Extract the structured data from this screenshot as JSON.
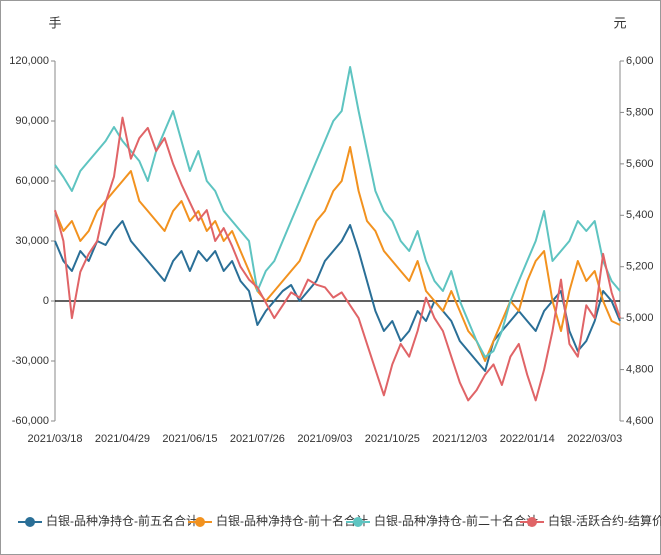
{
  "chart_data": {
    "type": "line",
    "y_unit": "手",
    "y2_unit": "元",
    "categories": [
      "2021/03/18",
      null,
      null,
      null,
      null,
      null,
      null,
      null,
      "2021/04/29",
      null,
      null,
      null,
      null,
      null,
      null,
      null,
      "2021/06/15",
      null,
      null,
      null,
      null,
      null,
      null,
      null,
      "2021/07/26",
      null,
      null,
      null,
      null,
      null,
      null,
      null,
      "2021/09/03",
      null,
      null,
      null,
      null,
      null,
      null,
      null,
      "2021/10/25",
      null,
      null,
      null,
      null,
      null,
      null,
      null,
      "2021/12/03",
      null,
      null,
      null,
      null,
      null,
      null,
      null,
      "2022/01/14",
      null,
      null,
      null,
      null,
      null,
      null,
      null,
      "2022/03/03",
      null,
      null,
      null
    ],
    "ylim": [
      -60000,
      120000
    ],
    "yticks": [
      {
        "value": -60000,
        "label": "-60,000"
      },
      {
        "value": -30000,
        "label": "-30,000"
      },
      0,
      {
        "value": 30000,
        "label": "30,000"
      },
      {
        "value": 60000,
        "label": "60,000"
      },
      {
        "value": 90000,
        "label": "90,000"
      },
      {
        "value": 120000,
        "label": "120,000"
      }
    ],
    "y2lim": [
      4600,
      6000
    ],
    "y2ticks": [
      {
        "value": 4600,
        "label": "4,600"
      },
      {
        "value": 4800,
        "label": "4,800"
      },
      {
        "value": 5000,
        "label": "5,000"
      },
      {
        "value": 5200,
        "label": "5,200"
      },
      {
        "value": 5400,
        "label": "5,400"
      },
      {
        "value": 5600,
        "label": "5,600"
      },
      {
        "value": 5800,
        "label": "5,800"
      },
      {
        "value": 6000,
        "label": "6,000"
      }
    ],
    "legend": "bottom",
    "series": [
      {
        "name": "白银-品种净持仓-前五名合计",
        "color": "#2a6f97",
        "values": [
          30000,
          20000,
          15000,
          25000,
          20000,
          30000,
          28000,
          35000,
          40000,
          30000,
          25000,
          20000,
          15000,
          10000,
          20000,
          25000,
          15000,
          25000,
          20000,
          25000,
          15000,
          20000,
          10000,
          5000,
          -12000,
          -5000,
          0,
          5000,
          8000,
          0,
          5000,
          10000,
          20000,
          25000,
          30000,
          38000,
          25000,
          10000,
          -5000,
          -15000,
          -10000,
          -20000,
          -15000,
          -5000,
          -10000,
          0,
          -5000,
          -10000,
          -20000,
          -25000,
          -30000,
          -35000,
          -20000,
          -15000,
          -10000,
          -5000,
          -10000,
          -15000,
          -5000,
          0,
          5000,
          -15000,
          -25000,
          -20000,
          -10000,
          5000,
          0,
          -10000
        ]
      },
      {
        "name": "白银-品种净持仓-前十名合计",
        "color": "#f2921f",
        "values": [
          45000,
          35000,
          40000,
          30000,
          35000,
          45000,
          50000,
          55000,
          60000,
          65000,
          50000,
          45000,
          40000,
          35000,
          45000,
          50000,
          40000,
          45000,
          35000,
          40000,
          30000,
          35000,
          25000,
          15000,
          5000,
          0,
          5000,
          10000,
          15000,
          20000,
          30000,
          40000,
          45000,
          55000,
          60000,
          77000,
          55000,
          40000,
          35000,
          25000,
          20000,
          15000,
          10000,
          20000,
          5000,
          0,
          -5000,
          5000,
          -5000,
          -15000,
          -20000,
          -30000,
          -20000,
          -10000,
          0,
          -5000,
          10000,
          20000,
          25000,
          0,
          -15000,
          5000,
          20000,
          10000,
          15000,
          0,
          -10000,
          -12000
        ]
      },
      {
        "name": "白银-品种净持仓-前二十名合计",
        "color": "#5ec4c1",
        "values": [
          68000,
          62000,
          55000,
          65000,
          70000,
          75000,
          80000,
          87000,
          80000,
          75000,
          70000,
          60000,
          75000,
          85000,
          95000,
          80000,
          65000,
          75000,
          60000,
          55000,
          45000,
          40000,
          35000,
          30000,
          5000,
          15000,
          20000,
          30000,
          40000,
          50000,
          60000,
          70000,
          80000,
          90000,
          95000,
          117000,
          95000,
          75000,
          55000,
          45000,
          40000,
          30000,
          25000,
          35000,
          20000,
          10000,
          5000,
          15000,
          0,
          -10000,
          -20000,
          -28000,
          -25000,
          -15000,
          0,
          10000,
          20000,
          30000,
          45000,
          20000,
          25000,
          30000,
          40000,
          35000,
          40000,
          20000,
          10000,
          5000
        ]
      },
      {
        "name": "白银-活跃合约-结算价",
        "color": "#e06467",
        "axis": "y2",
        "values": [
          5420,
          5300,
          5000,
          5180,
          5250,
          5300,
          5450,
          5550,
          5780,
          5620,
          5700,
          5740,
          5650,
          5700,
          5600,
          5520,
          5450,
          5380,
          5420,
          5300,
          5350,
          5280,
          5200,
          5150,
          5120,
          5060,
          5000,
          5050,
          5100,
          5080,
          5150,
          5130,
          5120,
          5080,
          5100,
          5050,
          5000,
          4900,
          4800,
          4700,
          4820,
          4900,
          4850,
          4950,
          5080,
          5000,
          4950,
          4850,
          4750,
          4680,
          4720,
          4780,
          4820,
          4740,
          4850,
          4900,
          4780,
          4680,
          4800,
          4950,
          5150,
          4900,
          4850,
          5050,
          5000,
          5250,
          5100,
          5000
        ]
      }
    ]
  }
}
